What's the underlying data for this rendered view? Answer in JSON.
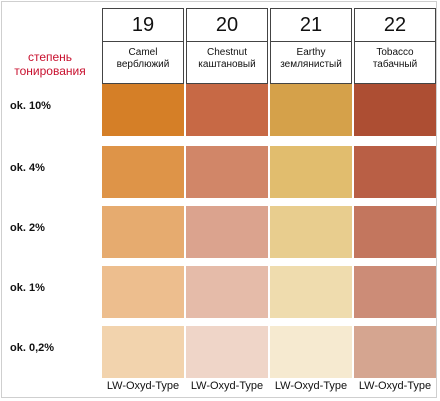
{
  "tone_heading": [
    "степень",
    "тонирования"
  ],
  "row_labels": [
    "ok. 10%",
    "ok. 4%",
    "ok. 2%",
    "ok. 1%",
    "ok. 0,2%"
  ],
  "columns": [
    {
      "number": "19",
      "name_en": "Camel",
      "name_ru": "верблюжий",
      "swatches": [
        "#d57f27",
        "#de9448",
        "#e6ab6f",
        "#edbe8e",
        "#f2d3ad"
      ],
      "type_label": "LW-Oxyd-Type"
    },
    {
      "number": "20",
      "name_en": "Chestnut",
      "name_ru": "каштановый",
      "swatches": [
        "#c76945",
        "#d18668",
        "#dba38e",
        "#e5bba9",
        "#efd5c8"
      ],
      "type_label": "LW-Oxyd-Type"
    },
    {
      "number": "21",
      "name_en": "Earthy",
      "name_ru": "землянистый",
      "swatches": [
        "#d5a14a",
        "#e1bd6e",
        "#e8cd8e",
        "#efdcae",
        "#f6ead0"
      ],
      "type_label": "LW-Oxyd-Type"
    },
    {
      "number": "22",
      "name_en": "Tobacco",
      "name_ru": "табачный",
      "swatches": [
        "#ad4e33",
        "#b95f45",
        "#c3765e",
        "#cc8c77",
        "#d5a590"
      ],
      "type_label": "LW-Oxyd-Type"
    }
  ]
}
